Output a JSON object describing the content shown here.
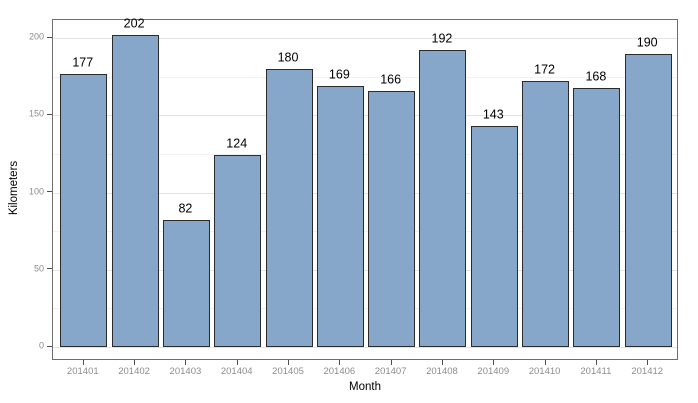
{
  "chart_data": {
    "type": "bar",
    "categories": [
      "201401",
      "201402",
      "201403",
      "201404",
      "201405",
      "201406",
      "201407",
      "201408",
      "201409",
      "201410",
      "201411",
      "201412"
    ],
    "values": [
      177,
      202,
      82,
      124,
      180,
      169,
      166,
      192,
      143,
      172,
      168,
      190
    ],
    "title": "",
    "xlabel": "Month",
    "ylabel": "Kilometers",
    "ylim": [
      0,
      212
    ],
    "yticks": [
      0,
      50,
      100,
      150,
      200
    ],
    "yticks_minor": [
      25,
      75,
      125,
      175
    ],
    "bar_value_labels_shown": true,
    "grid": "major+minor",
    "legend": "none",
    "colors": {
      "bar_fill": "#86A7C9",
      "bar_border": "#2b2b2b",
      "panel_border": "#6e6e6e",
      "grid_major": "#e3e3e3",
      "grid_minor": "#f1f1f1",
      "tick_mark": "#4d4d4d",
      "tick_label": "#8c8c8c",
      "axis_title": "#000000",
      "value_label": "#000000",
      "background": "#ffffff"
    }
  }
}
